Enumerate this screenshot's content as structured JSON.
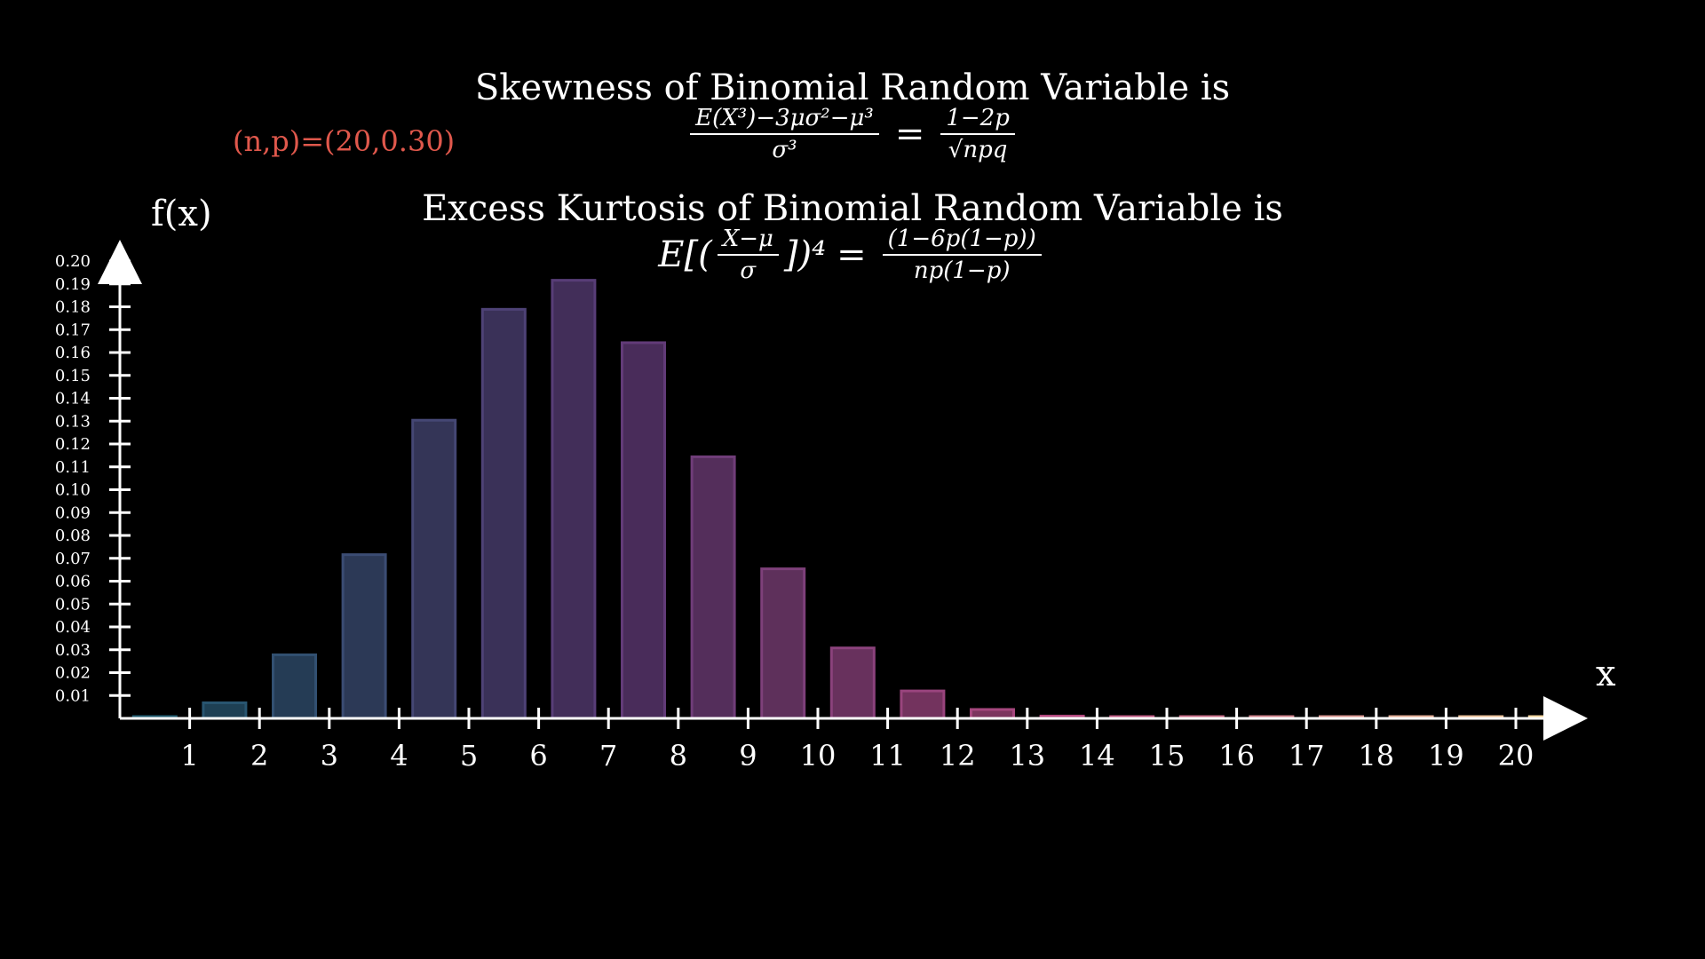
{
  "param_label": "(n,p)=(20,0.30)",
  "skewness": {
    "title": "Skewness of Binomial Random Variable is",
    "lhs_num": "E(X³)−3μσ²−μ³",
    "lhs_den": "σ³",
    "eq": "=",
    "rhs_num": "1−2p",
    "rhs_den": "√npq"
  },
  "kurtosis": {
    "title": "Excess Kurtosis of Binomial Random Variable is",
    "lhs_prefix": "E[(",
    "lhs_num": "X−μ",
    "lhs_den": "σ",
    "lhs_suffix": "])⁴",
    "eq": "=",
    "rhs_num": "(1−6p(1−p))",
    "rhs_den": "np(1−p)"
  },
  "chart_data": {
    "type": "bar",
    "xlabel": "x",
    "ylabel": "f(x)",
    "x_ticks": [
      "1",
      "2",
      "3",
      "4",
      "5",
      "6",
      "7",
      "8",
      "9",
      "10",
      "11",
      "12",
      "13",
      "14",
      "15",
      "16",
      "17",
      "18",
      "19",
      "20"
    ],
    "y_ticks": [
      "0.01",
      "0.02",
      "0.03",
      "0.04",
      "0.05",
      "0.06",
      "0.07",
      "0.08",
      "0.09",
      "0.10",
      "0.11",
      "0.12",
      "0.13",
      "0.14",
      "0.15",
      "0.16",
      "0.17",
      "0.18",
      "0.19",
      "0.20"
    ],
    "ylim": [
      0,
      0.2
    ],
    "x": [
      0,
      1,
      2,
      3,
      4,
      5,
      6,
      7,
      8,
      9,
      10,
      11,
      12,
      13,
      14,
      15,
      16,
      17,
      18,
      19,
      20
    ],
    "values": [
      0.0008,
      0.0068,
      0.0278,
      0.0716,
      0.1304,
      0.1789,
      0.1916,
      0.1643,
      0.1144,
      0.0654,
      0.0308,
      0.012,
      0.0039,
      0.001,
      0.0002,
      4e-05,
      6e-06,
      7e-07,
      6e-08,
      3e-09,
      1e-10
    ],
    "colors": {
      "bar_start": "#1f5a6e",
      "bar_mid": "#5e3a78",
      "bar_hot": "#b84a7f",
      "bar_end": "#f2d39a",
      "axis": "#ffffff"
    }
  }
}
